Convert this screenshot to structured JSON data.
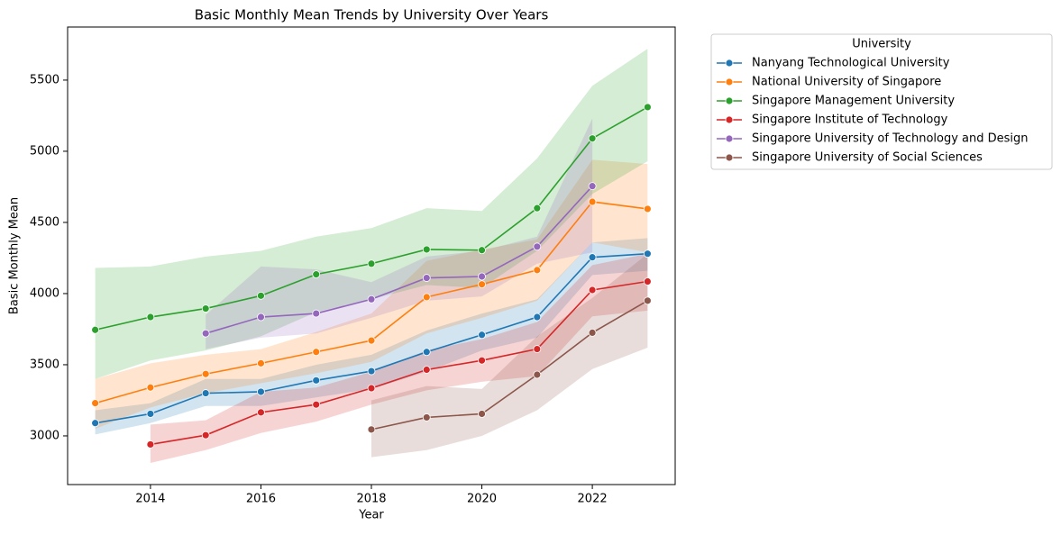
{
  "chart_data": {
    "type": "line",
    "title": "Basic Monthly Mean Trends by University Over Years",
    "x_label": "Year",
    "y_label": "Basic Monthly Mean",
    "legend_title": "University",
    "legend_position": "outside-upper-right",
    "x": [
      2013,
      2014,
      2015,
      2016,
      2017,
      2018,
      2019,
      2020,
      2021,
      2022,
      2023
    ],
    "xlim": [
      2012.5,
      2023.5
    ],
    "xticks": [
      2014,
      2016,
      2018,
      2020,
      2022
    ],
    "ylim": [
      2658,
      5873
    ],
    "yticks": [
      3000,
      3500,
      4000,
      4500,
      5000,
      5500
    ],
    "grid": false,
    "series": [
      {
        "name": "Nanyang Technological University",
        "color": "#1f77b4",
        "values": [
          3090,
          3155,
          3300,
          3310,
          3390,
          3455,
          3590,
          3710,
          3835,
          4255,
          4280
        ],
        "lower": [
          3010,
          3090,
          3210,
          3210,
          3270,
          3330,
          3450,
          3600,
          3690,
          4130,
          4160
        ],
        "upper": [
          3180,
          3230,
          3400,
          3400,
          3500,
          3570,
          3740,
          3860,
          3960,
          4360,
          4390
        ]
      },
      {
        "name": "National University of Singapore",
        "color": "#ff7f0e",
        "values": [
          3230,
          3340,
          3435,
          3510,
          3590,
          3670,
          3975,
          4065,
          4165,
          4645,
          4595
        ],
        "lower": [
          3050,
          3200,
          3300,
          3370,
          3440,
          3520,
          3720,
          3830,
          3950,
          4360,
          4290
        ],
        "upper": [
          3400,
          3510,
          3570,
          3610,
          3730,
          3860,
          4230,
          4310,
          4380,
          4940,
          4910
        ]
      },
      {
        "name": "Singapore Management University",
        "color": "#2ca02c",
        "values": [
          3745,
          3835,
          3895,
          3985,
          4135,
          4210,
          4310,
          4305,
          4600,
          5090,
          5310
        ],
        "lower": [
          3400,
          3530,
          3600,
          3700,
          3870,
          3960,
          4060,
          4040,
          4300,
          4700,
          4930
        ],
        "upper": [
          4180,
          4190,
          4260,
          4300,
          4400,
          4460,
          4600,
          4580,
          4950,
          5460,
          5720
        ]
      },
      {
        "name": "Singapore Institute of Technology",
        "color": "#d62728",
        "values": [
          null,
          2940,
          3005,
          3165,
          3220,
          3335,
          3465,
          3530,
          3610,
          4025,
          4085
        ],
        "lower": [
          null,
          2810,
          2900,
          3020,
          3100,
          3220,
          3320,
          3380,
          3420,
          3840,
          3880
        ],
        "upper": [
          null,
          3080,
          3110,
          3310,
          3340,
          3450,
          3600,
          3680,
          3800,
          4200,
          4280
        ]
      },
      {
        "name": "Singapore University of Technology and Design",
        "color": "#9467bd",
        "values": [
          null,
          null,
          3720,
          3835,
          3860,
          3960,
          4110,
          4120,
          4330,
          4755,
          null
        ],
        "lower": [
          null,
          null,
          3610,
          3690,
          3720,
          3830,
          3950,
          3980,
          4210,
          4290,
          null
        ],
        "upper": [
          null,
          null,
          3850,
          4190,
          4170,
          4080,
          4260,
          4300,
          4400,
          5230,
          null
        ]
      },
      {
        "name": "Singapore University of Social Sciences",
        "color": "#8c564b",
        "values": [
          null,
          null,
          null,
          null,
          null,
          3045,
          3130,
          3155,
          3430,
          3725,
          3950
        ],
        "lower": [
          null,
          null,
          null,
          null,
          null,
          2850,
          2900,
          3000,
          3180,
          3470,
          3620
        ],
        "upper": [
          null,
          null,
          null,
          null,
          null,
          3250,
          3350,
          3330,
          3700,
          3970,
          4280
        ]
      }
    ]
  }
}
